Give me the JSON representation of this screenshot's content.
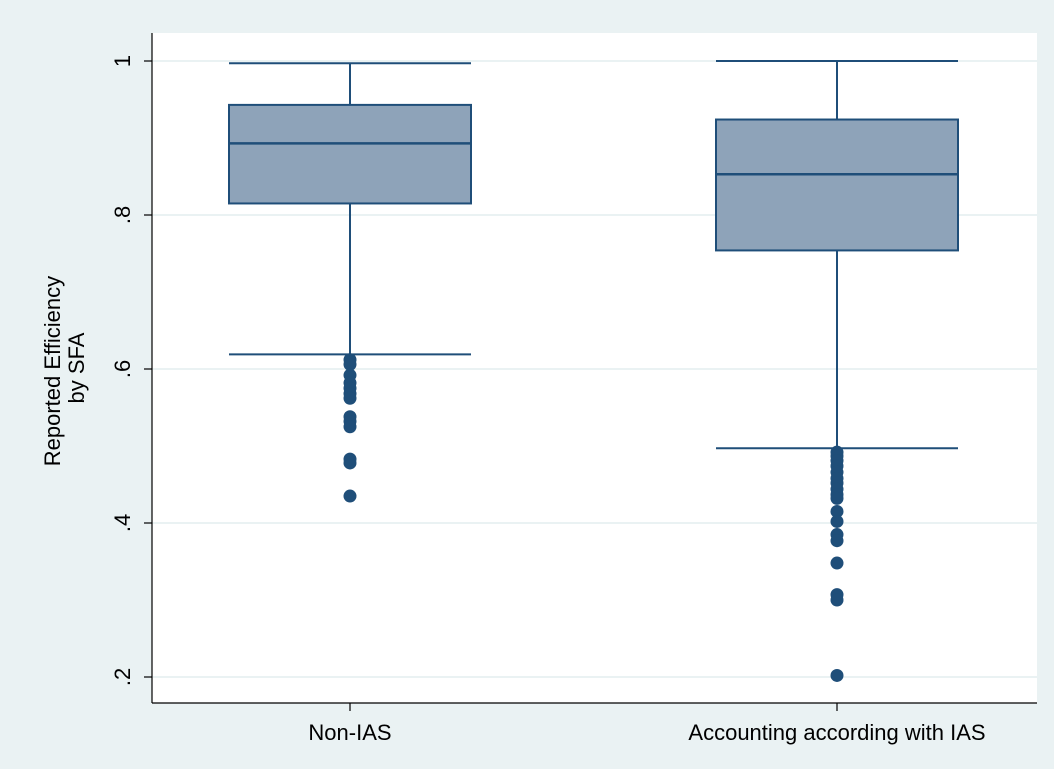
{
  "chart_data": {
    "type": "boxplot",
    "ylabel": "Reported Efficiency by SFA",
    "ylabel_lines": [
      "Reported Efficiency",
      "by SFA"
    ],
    "ylim": [
      0.18,
      1.02
    ],
    "yticks": [
      {
        "value": 0.2,
        "label": ".2"
      },
      {
        "value": 0.4,
        "label": ".4"
      },
      {
        "value": 0.6,
        "label": ".6"
      },
      {
        "value": 0.8,
        "label": ".8"
      },
      {
        "value": 1.0,
        "label": "1"
      }
    ],
    "grid": true,
    "colors": {
      "background": "#eaf2f3",
      "plot_background": "#ffffff",
      "box_fill": "#8ea3b9",
      "box_stroke": "#1f4e79",
      "outlier": "#1f4e79",
      "grid": "#eaf2f3"
    },
    "categories": [
      "Non-IAS",
      "Accounting according with IAS"
    ],
    "boxes": [
      {
        "category": "Non-IAS",
        "whisker_low": 0.619,
        "q1": 0.815,
        "median": 0.893,
        "q3": 0.943,
        "whisker_high": 0.997,
        "outliers": [
          0.612,
          0.606,
          0.592,
          0.582,
          0.575,
          0.568,
          0.562,
          0.538,
          0.532,
          0.525,
          0.483,
          0.478,
          0.435
        ]
      },
      {
        "category": "Accounting according with IAS",
        "whisker_low": 0.497,
        "q1": 0.754,
        "median": 0.853,
        "q3": 0.924,
        "whisker_high": 1.0,
        "outliers": [
          0.492,
          0.487,
          0.481,
          0.474,
          0.466,
          0.458,
          0.452,
          0.444,
          0.437,
          0.432,
          0.415,
          0.402,
          0.385,
          0.377,
          0.348,
          0.307,
          0.3,
          0.202
        ]
      }
    ]
  }
}
